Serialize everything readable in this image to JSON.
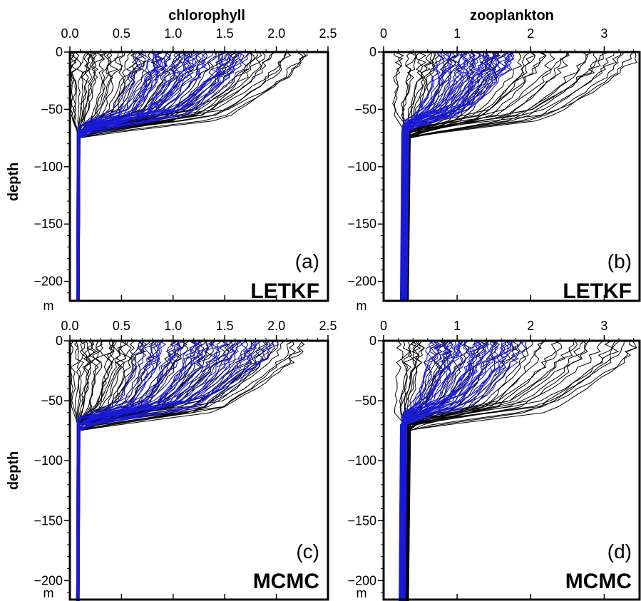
{
  "figure": {
    "y_label": "depth",
    "y_unit": "m"
  },
  "chart_data": [
    {
      "id": "a",
      "type": "line",
      "title": "chlorophyll",
      "tag": "(a)",
      "method": "LETKF",
      "xlim": [
        0,
        2.5
      ],
      "ylim": [
        -217,
        0
      ],
      "x_ticks": [
        "0.0",
        "0.5",
        "1.0",
        "1.5",
        "2.0",
        "2.5"
      ],
      "y_ticks": [
        "0",
        "−50",
        "−100",
        "−150",
        "−200"
      ],
      "colors": {
        "background": "#000000",
        "analysis": "#1a1ad6"
      },
      "series_description": "ensemble profiles: black = background, blue = analysis",
      "black_profiles": {
        "n": 60,
        "surface_range": [
          0.05,
          2.3
        ],
        "mixed_layer_base": -70,
        "deep_value": 0.08
      },
      "blue_profiles": {
        "n": 40,
        "surface_range": [
          0.7,
          1.75
        ],
        "mixed_layer_base": -68,
        "deep_value": 0.08
      }
    },
    {
      "id": "b",
      "type": "line",
      "title": "zooplankton",
      "tag": "(b)",
      "method": "LETKF",
      "xlim": [
        0,
        3.5
      ],
      "ylim": [
        -217,
        0
      ],
      "x_ticks": [
        "0",
        "1",
        "2",
        "3"
      ],
      "y_ticks": [
        "0",
        "−50",
        "−100",
        "−150",
        "−200"
      ],
      "colors": {
        "background": "#000000",
        "analysis": "#1a1ad6"
      },
      "black_profiles": {
        "n": 45,
        "surface_range": [
          0.25,
          3.5
        ],
        "mixed_layer_base": -70,
        "deep_value": 0.3
      },
      "blue_profiles": {
        "n": 40,
        "surface_range": [
          0.8,
          1.8
        ],
        "mixed_layer_base": -65,
        "deep_value": 0.28
      }
    },
    {
      "id": "c",
      "type": "line",
      "title": "",
      "tag": "(c)",
      "method": "MCMC",
      "xlim": [
        0,
        2.5
      ],
      "ylim": [
        -217,
        0
      ],
      "x_ticks": [
        "0.0",
        "0.5",
        "1.0",
        "1.5",
        "2.0",
        "2.5"
      ],
      "y_ticks": [
        "0",
        "−50",
        "−100",
        "−150",
        "−200"
      ],
      "colors": {
        "background": "#000000",
        "analysis": "#1a1ad6"
      },
      "black_profiles": {
        "n": 60,
        "surface_range": [
          0.05,
          2.3
        ],
        "mixed_layer_base": -70,
        "deep_value": 0.08
      },
      "blue_profiles": {
        "n": 40,
        "surface_range": [
          0.7,
          2.0
        ],
        "mixed_layer_base": -68,
        "deep_value": 0.08
      }
    },
    {
      "id": "d",
      "type": "line",
      "title": "",
      "tag": "(d)",
      "method": "MCMC",
      "xlim": [
        0,
        3.5
      ],
      "ylim": [
        -217,
        0
      ],
      "x_ticks": [
        "0",
        "1",
        "2",
        "3"
      ],
      "y_ticks": [
        "0",
        "−50",
        "−100",
        "−150",
        "−200"
      ],
      "colors": {
        "background": "#000000",
        "analysis": "#1a1ad6"
      },
      "black_profiles": {
        "n": 45,
        "surface_range": [
          0.25,
          3.5
        ],
        "mixed_layer_base": -70,
        "deep_value": 0.3
      },
      "blue_profiles": {
        "n": 40,
        "surface_range": [
          0.65,
          1.85
        ],
        "mixed_layer_base": -65,
        "deep_value": 0.26
      }
    }
  ]
}
